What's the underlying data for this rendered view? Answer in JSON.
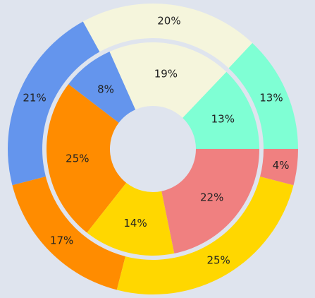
{
  "background": "#dfe4ee",
  "chart_data": {
    "type": "pie",
    "variant": "nested-donut",
    "rings": [
      {
        "name": "",
        "start_angle_deg": 0,
        "direction": "counterclockwise",
        "slices": [
          {
            "label": "13%",
            "value": 13,
            "color": "#7fffd4"
          },
          {
            "label": "20%",
            "value": 20,
            "color": "#f5f5dc"
          },
          {
            "label": "21%",
            "value": 21,
            "color": "#6495ed"
          },
          {
            "label": "17%",
            "value": 17,
            "color": "#ff8c00"
          },
          {
            "label": "25%",
            "value": 25,
            "color": "#ffd700"
          },
          {
            "label": "4%",
            "value": 4,
            "color": "#f08080"
          }
        ]
      },
      {
        "name": "",
        "start_angle_deg": 0,
        "direction": "counterclockwise",
        "slices": [
          {
            "label": "13%",
            "value": 13,
            "color": "#7fffd4"
          },
          {
            "label": "19%",
            "value": 19,
            "color": "#f5f5dc"
          },
          {
            "label": "8%",
            "value": 8,
            "color": "#6495ed"
          },
          {
            "label": "25%",
            "value": 25,
            "color": "#ff8c00"
          },
          {
            "label": "14%",
            "value": 14,
            "color": "#ffd700"
          },
          {
            "label": "22%",
            "value": 22,
            "color": "#f08080"
          }
        ]
      }
    ]
  }
}
